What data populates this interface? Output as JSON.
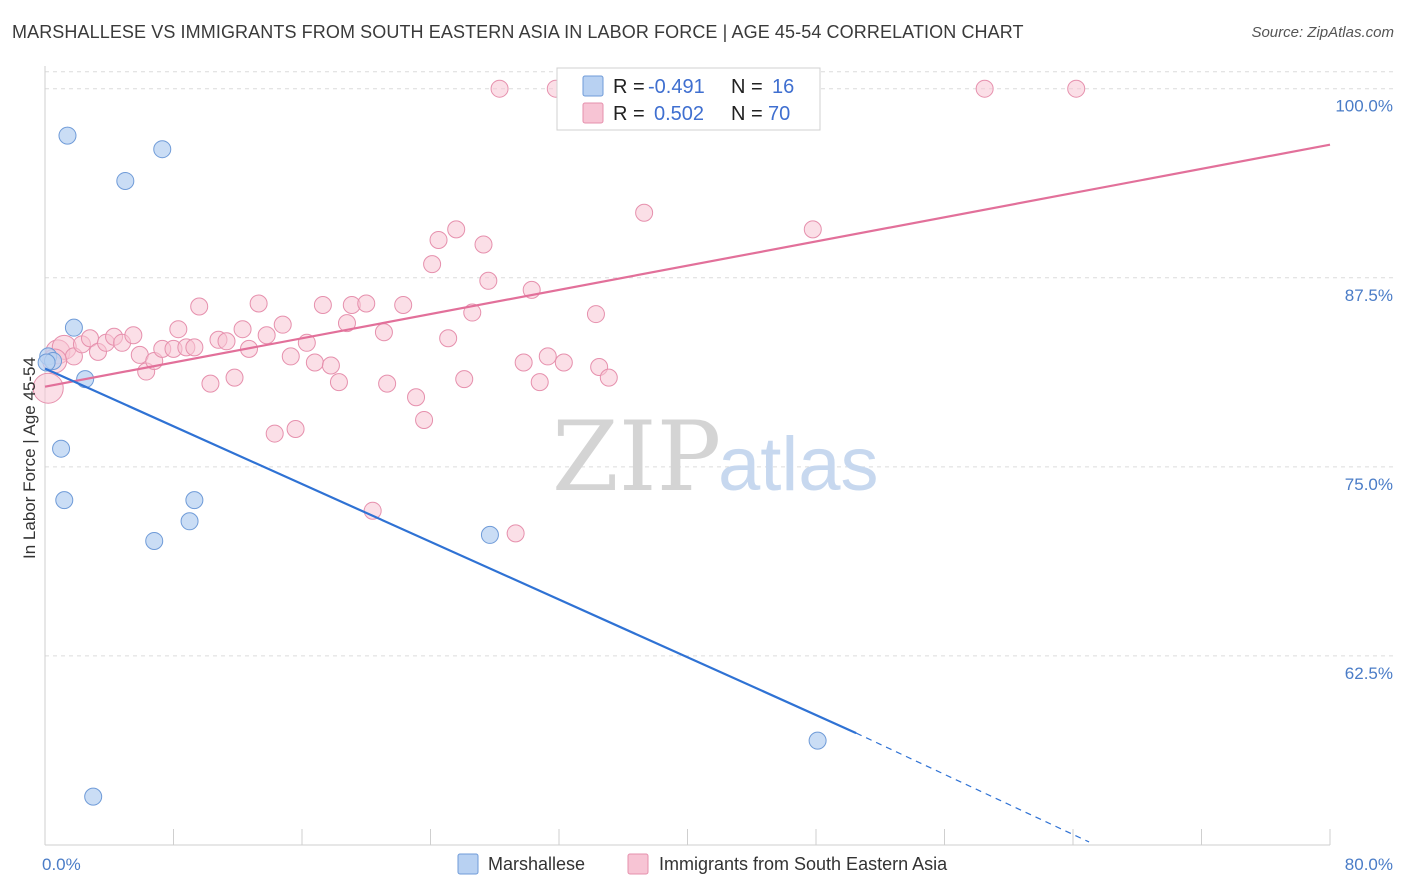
{
  "title": "MARSHALLESE VS IMMIGRANTS FROM SOUTH EASTERN ASIA IN LABOR FORCE | AGE 45-54 CORRELATION CHART",
  "source": "Source: ZipAtlas.com",
  "watermark": {
    "zip": "ZIP",
    "atlas": "atlas"
  },
  "colors": {
    "blue_fill": "#b8d1f2",
    "blue_stroke": "#6f9bd8",
    "blue_line": "#2f72d4",
    "pink_fill": "#f7c4d4",
    "pink_stroke": "#e690ad",
    "pink_line": "#e2709a",
    "grid": "#dcdcdc",
    "tick_text": "#4a7cc7"
  },
  "stats": [
    {
      "r_label": "R =",
      "r_value": "-0.491",
      "n_label": "N =",
      "n_value": "16"
    },
    {
      "r_label": "R =",
      "r_value": "0.502",
      "n_label": "N =",
      "n_value": "70"
    }
  ],
  "chart_data": {
    "type": "scatter",
    "xlabel": "",
    "ylabel": "In Labor Force | Age 45-54",
    "xlim": [
      0,
      80
    ],
    "ylim": [
      50,
      101.5
    ],
    "x_tick_labels": [
      "0.0%",
      "80.0%"
    ],
    "y_ticks": [
      62.5,
      75.0,
      87.5,
      100.0
    ],
    "y_tick_labels": [
      "62.5%",
      "75.0%",
      "87.5%",
      "100.0%"
    ],
    "legend": [
      "Marshallese",
      "Immigrants from South Eastern Asia"
    ],
    "legend_position": "bottom",
    "series": [
      {
        "name": "Marshallese",
        "color": "blue",
        "points": [
          [
            0.2,
            82.3
          ],
          [
            0.5,
            82.0
          ],
          [
            1.0,
            76.2
          ],
          [
            1.2,
            72.8
          ],
          [
            1.4,
            96.9
          ],
          [
            1.8,
            84.2
          ],
          [
            2.5,
            80.8
          ],
          [
            3.0,
            53.2
          ],
          [
            5.0,
            93.9
          ],
          [
            6.8,
            70.1
          ],
          [
            7.3,
            96.0
          ],
          [
            9.0,
            71.4
          ],
          [
            9.3,
            72.8
          ],
          [
            27.7,
            70.5
          ],
          [
            48.1,
            56.9
          ],
          [
            0.1,
            81.9
          ]
        ],
        "trend": {
          "x0": 0,
          "y0": 81.5,
          "x1": 50.5,
          "y1": 57.4,
          "dash_to_x": 65,
          "dash_to_y": 50.2
        }
      },
      {
        "name": "Immigrants from South Eastern Asia",
        "color": "pink",
        "points": [
          [
            0.2,
            80.2
          ],
          [
            0.8,
            82.6
          ],
          [
            1.2,
            82.9
          ],
          [
            1.8,
            82.3
          ],
          [
            2.3,
            83.1
          ],
          [
            2.8,
            83.5
          ],
          [
            3.3,
            82.6
          ],
          [
            3.8,
            83.2
          ],
          [
            4.3,
            83.6
          ],
          [
            4.8,
            83.2
          ],
          [
            5.5,
            83.7
          ],
          [
            5.9,
            82.4
          ],
          [
            6.3,
            81.3
          ],
          [
            6.8,
            82.0
          ],
          [
            7.3,
            82.8
          ],
          [
            8.0,
            82.8
          ],
          [
            8.3,
            84.1
          ],
          [
            8.8,
            82.9
          ],
          [
            9.3,
            82.9
          ],
          [
            9.6,
            85.6
          ],
          [
            10.3,
            80.5
          ],
          [
            10.8,
            83.4
          ],
          [
            11.3,
            83.3
          ],
          [
            11.8,
            80.9
          ],
          [
            12.3,
            84.1
          ],
          [
            12.7,
            82.8
          ],
          [
            13.3,
            85.8
          ],
          [
            13.8,
            83.7
          ],
          [
            14.3,
            77.2
          ],
          [
            14.8,
            84.4
          ],
          [
            15.3,
            82.3
          ],
          [
            15.6,
            77.5
          ],
          [
            16.3,
            83.2
          ],
          [
            16.8,
            81.9
          ],
          [
            17.3,
            85.7
          ],
          [
            17.8,
            81.7
          ],
          [
            18.3,
            80.6
          ],
          [
            18.8,
            84.5
          ],
          [
            19.1,
            85.7
          ],
          [
            20.0,
            85.8
          ],
          [
            20.4,
            72.1
          ],
          [
            21.1,
            83.9
          ],
          [
            21.3,
            80.5
          ],
          [
            22.3,
            85.7
          ],
          [
            23.1,
            79.6
          ],
          [
            23.6,
            78.1
          ],
          [
            24.1,
            88.4
          ],
          [
            24.5,
            90.0
          ],
          [
            25.1,
            83.5
          ],
          [
            25.6,
            90.7
          ],
          [
            26.1,
            80.8
          ],
          [
            26.6,
            85.2
          ],
          [
            27.3,
            89.7
          ],
          [
            27.6,
            87.3
          ],
          [
            28.3,
            100.0
          ],
          [
            29.3,
            70.6
          ],
          [
            29.8,
            81.9
          ],
          [
            30.3,
            86.7
          ],
          [
            30.8,
            80.6
          ],
          [
            31.3,
            82.3
          ],
          [
            31.8,
            100.0
          ],
          [
            32.3,
            81.9
          ],
          [
            34.3,
            85.1
          ],
          [
            34.5,
            81.6
          ],
          [
            35.1,
            80.9
          ],
          [
            37.3,
            91.8
          ],
          [
            47.8,
            90.7
          ],
          [
            58.5,
            100.0
          ],
          [
            64.2,
            100.0
          ],
          [
            0.6,
            82.0
          ]
        ],
        "trend": {
          "x0": 0,
          "y0": 80.3,
          "x1": 80,
          "y1": 96.3
        }
      }
    ]
  }
}
